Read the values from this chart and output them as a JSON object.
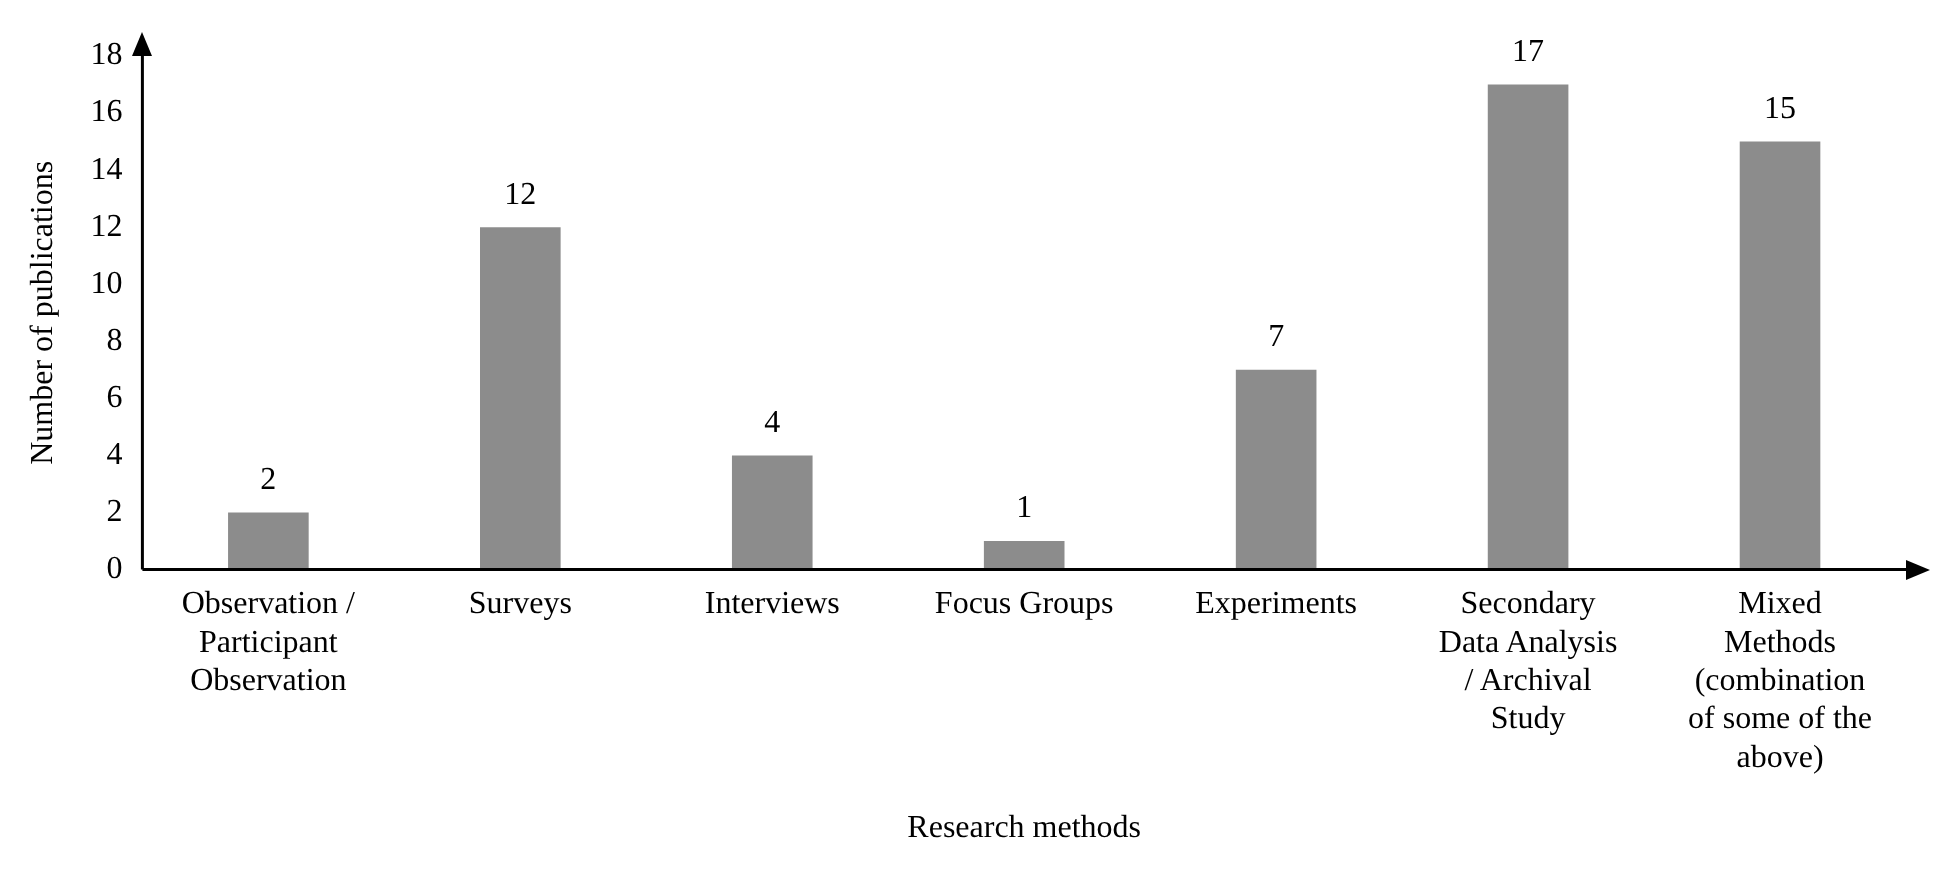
{
  "chart_data": {
    "type": "bar",
    "categories": [
      "Observation / Participant Observation",
      "Surveys",
      "Interviews",
      "Focus Groups",
      "Experiments",
      "Secondary Data Analysis / Archival Study",
      "Mixed Methods (combination of some of the above)"
    ],
    "values": [
      2,
      12,
      4,
      1,
      7,
      17,
      15
    ],
    "color": "#8c8c8c",
    "xlabel": "Research methods",
    "ylabel": "Number of publications",
    "ylim": [
      0,
      18
    ],
    "yticks": [
      0,
      2,
      4,
      6,
      8,
      10,
      12,
      14,
      16,
      18
    ],
    "grid": false,
    "legend": false,
    "data_labels": true
  }
}
